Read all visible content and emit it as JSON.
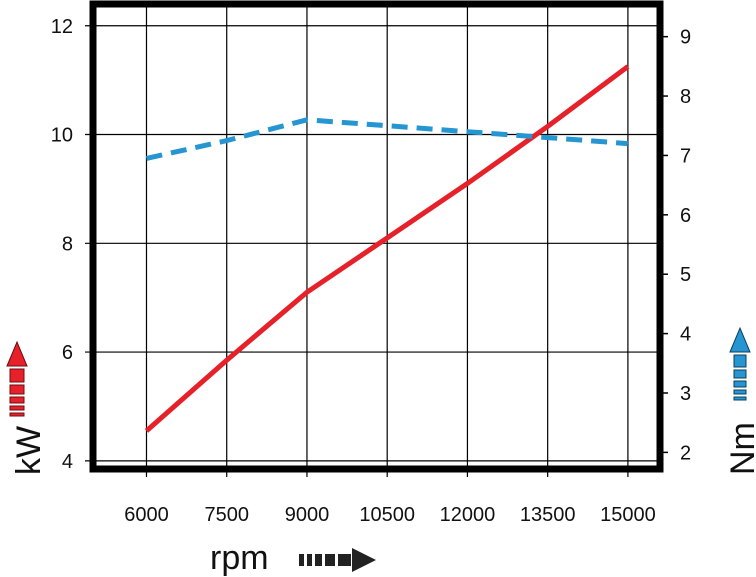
{
  "chart_data": {
    "type": "line",
    "title": "",
    "xlabel": "rpm",
    "ylabel": "kW",
    "y2label": "Nm",
    "x": [
      6000,
      7500,
      9000,
      10500,
      12000,
      13500,
      15000
    ],
    "xlim": [
      5000,
      15600
    ],
    "ylim": [
      3.85,
      12.4
    ],
    "y2lim": [
      1.72,
      9.55
    ],
    "x_ticks": [
      "6000",
      "7500",
      "9000",
      "10500",
      "12000",
      "13500",
      "15000"
    ],
    "y_ticks": [
      "4",
      "6",
      "8",
      "10",
      "12"
    ],
    "y2_ticks": [
      "2",
      "3",
      "4",
      "5",
      "6",
      "7",
      "8",
      "9"
    ],
    "grid": true,
    "series": [
      {
        "axis": "left",
        "color": "#e62129",
        "style": "solid",
        "values": [
          4.55,
          5.85,
          7.1,
          8.1,
          9.1,
          10.15,
          11.25
        ]
      },
      {
        "axis": "right",
        "color": "#2596d1",
        "style": "dashed",
        "values": [
          6.95,
          7.25,
          7.6,
          7.5,
          7.4,
          7.3,
          7.2
        ]
      }
    ],
    "arrow_colors": {
      "x": "#222222",
      "y": "#e62129",
      "y2": "#2596d1"
    }
  }
}
